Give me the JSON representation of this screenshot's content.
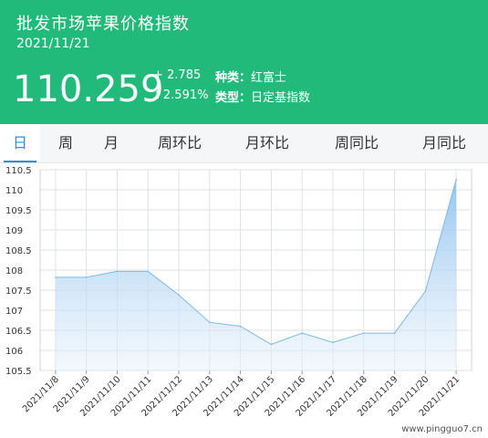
{
  "header": {
    "title": "批发市场苹果价格指数",
    "date": "2021/11/21",
    "price": "110.259",
    "change_abs": "+ 2.785",
    "change_pct": "↑2.591%",
    "variety_label": "种类：",
    "variety_value": "红富士",
    "type_label": "类型：",
    "type_value": "日定基指数",
    "bg_color": "#22ba7b"
  },
  "tabs": [
    {
      "label": "日",
      "active": true
    },
    {
      "label": "周",
      "active": false
    },
    {
      "label": "月",
      "active": false
    },
    {
      "label": "周环比",
      "active": false
    },
    {
      "label": "月环比",
      "active": false
    },
    {
      "label": "周同比",
      "active": false
    },
    {
      "label": "月同比",
      "active": false
    }
  ],
  "watermark": "www.pingguo7.cn",
  "chart_data": {
    "type": "area",
    "x": [
      "2021/11/8",
      "2021/11/9",
      "2021/11/10",
      "2021/11/11",
      "2021/11/12",
      "2021/11/13",
      "2021/11/14",
      "2021/11/15",
      "2021/11/16",
      "2021/11/17",
      "2021/11/18",
      "2021/11/19",
      "2021/11/20",
      "2021/11/21"
    ],
    "series": [
      {
        "values": [
          107.82,
          107.82,
          107.97,
          107.97,
          107.38,
          106.7,
          106.6,
          106.15,
          106.43,
          106.2,
          106.43,
          106.43,
          107.47,
          110.259
        ]
      }
    ],
    "yticks": [
      "105.5",
      "106",
      "106.5",
      "107",
      "107.5",
      "108",
      "108.5",
      "109",
      "109.5",
      "110",
      "110.5"
    ],
    "ylim": [
      105.5,
      110.5
    ],
    "grid": true,
    "line_color": "#7eb8e8",
    "fill_color": "#8ec2ef"
  }
}
